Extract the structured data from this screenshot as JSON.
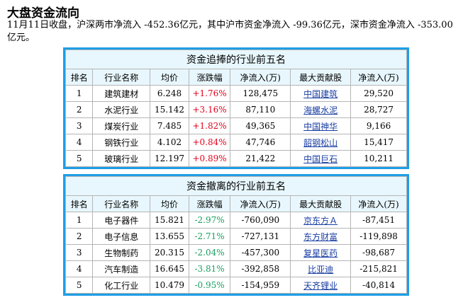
{
  "title": "大盘资金流向",
  "summary": "11月11日收盘，沪深两市净流入 -452.36亿元，其中沪市资金净流入 -99.36亿元，深市资金净流入 -353.00亿元。",
  "columns": [
    "排名",
    "行业名称",
    "均价",
    "涨跌幅",
    "净流入(万)",
    "最大贡献股",
    "净流入(万)"
  ],
  "colors": {
    "border": "#1e9ee6",
    "header_bg": "#e8f7fd",
    "up": "#e3001b",
    "down": "#18a060",
    "link": "#1a3ea3"
  },
  "inflow": {
    "caption": "资金追捧的行业前五名",
    "rows": [
      {
        "rank": "1",
        "industry": "建筑建材",
        "price": "6.248",
        "change": "+1.76%",
        "net": "128,475",
        "stock": "中国建筑",
        "stock_net": "29,520"
      },
      {
        "rank": "2",
        "industry": "水泥行业",
        "price": "15.142",
        "change": "+3.16%",
        "net": "87,110",
        "stock": "海螺水泥",
        "stock_net": "28,727"
      },
      {
        "rank": "3",
        "industry": "煤炭行业",
        "price": "7.485",
        "change": "+1.82%",
        "net": "49,365",
        "stock": "中国神华",
        "stock_net": "9,166"
      },
      {
        "rank": "4",
        "industry": "钢铁行业",
        "price": "4.102",
        "change": "+0.84%",
        "net": "47,746",
        "stock": "韶钢松山",
        "stock_net": "15,417"
      },
      {
        "rank": "5",
        "industry": "玻璃行业",
        "price": "12.197",
        "change": "+0.89%",
        "net": "21,422",
        "stock": "中国巨石",
        "stock_net": "10,211"
      }
    ]
  },
  "outflow": {
    "caption": "资金撤离的行业前五名",
    "rows": [
      {
        "rank": "1",
        "industry": "电子器件",
        "price": "15.821",
        "change": "-2.97%",
        "net": "-760,090",
        "stock": "京东方Ａ",
        "stock_net": "-87,451"
      },
      {
        "rank": "2",
        "industry": "电子信息",
        "price": "13.655",
        "change": "-2.71%",
        "net": "-727,131",
        "stock": "东方财富",
        "stock_net": "-119,898"
      },
      {
        "rank": "3",
        "industry": "生物制药",
        "price": "20.315",
        "change": "-2.04%",
        "net": "-457,300",
        "stock": "复星医药",
        "stock_net": "-98,687"
      },
      {
        "rank": "4",
        "industry": "汽车制造",
        "price": "16.645",
        "change": "-3.81%",
        "net": "-392,858",
        "stock": "比亚迪",
        "stock_net": "-215,821"
      },
      {
        "rank": "5",
        "industry": "化工行业",
        "price": "10.479",
        "change": "-0.95%",
        "net": "-154,959",
        "stock": "天齐锂业",
        "stock_net": "-40,814"
      }
    ]
  }
}
